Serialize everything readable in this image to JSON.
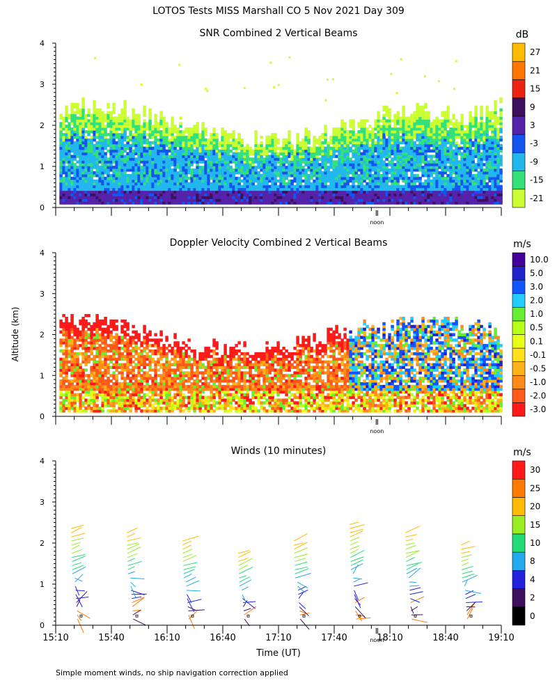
{
  "title": "LOTOS Tests MISS Marshall CO   5 Nov 2021 Day 309",
  "y_axis_label": "Altitude (km)",
  "x_axis_label": "Time (UT)",
  "noon_label": "noon",
  "footer": "Simple moment winds, no ship navigation correction applied",
  "colors": {
    "snr": [
      "#ccff33",
      "#33e07a",
      "#22b8ee",
      "#1455f0",
      "#5522aa",
      "#3d0f5c",
      "#ee2211",
      "#ff7700",
      "#ffbb00"
    ],
    "doppler": [
      "#ff1a1a",
      "#ff5a1a",
      "#ff8c1a",
      "#ffb31a",
      "#ffe01a",
      "#e8ff1a",
      "#b8ff1a",
      "#66ee33",
      "#22ccff",
      "#1155ff",
      "#2222cc",
      "#440099",
      "#220033"
    ],
    "winds": [
      "#000000",
      "#3d0f5c",
      "#2222dd",
      "#22aaee",
      "#22dd77",
      "#99ee22",
      "#ffbb00",
      "#ff7a00",
      "#ff1a1a"
    ]
  },
  "chart_data": [
    {
      "type": "heatmap",
      "title": "SNR Combined 2 Vertical Beams",
      "unit": "dB",
      "xlim_minutes": [
        0,
        240
      ],
      "ylim_km": [
        0,
        4
      ],
      "yticks": [
        "0",
        "1",
        "2",
        "3",
        "4"
      ],
      "colorbar_labels": [
        "-21",
        "-15",
        "-9",
        "-3",
        "3",
        "9",
        "15",
        "21",
        "27"
      ],
      "echo_top_km": [
        2.2,
        2.5,
        2.4,
        2.2,
        2.0,
        1.9,
        1.75,
        1.6,
        1.55,
        1.7,
        1.9,
        2.1,
        2.25,
        2.35,
        2.3,
        2.2,
        2.45
      ]
    },
    {
      "type": "heatmap",
      "title": "Doppler Velocity Combined 2 Vertical Beams",
      "unit": "m/s",
      "xlim_minutes": [
        0,
        240
      ],
      "ylim_km": [
        0,
        4
      ],
      "yticks": [
        "0",
        "1",
        "2",
        "3",
        "4"
      ],
      "colorbar_labels": [
        "-3.0",
        "-2.0",
        "-1.0",
        "-0.5",
        "-0.1",
        "0.1",
        "0.5",
        "1.0",
        "2.0",
        "3.0",
        "5.0",
        "10.0"
      ],
      "echo_top_km": [
        2.3,
        2.4,
        2.2,
        2.0,
        1.85,
        1.7,
        1.65,
        1.6,
        1.7,
        1.85,
        2.0,
        2.1,
        2.2,
        2.25,
        2.2,
        2.3,
        1.9
      ]
    },
    {
      "type": "scatter",
      "title": "Winds (10 minutes)",
      "unit": "m/s",
      "xlim_minutes": [
        0,
        240
      ],
      "ylim_km": [
        0,
        4
      ],
      "yticks": [
        "0",
        "1",
        "2",
        "3",
        "4"
      ],
      "colorbar_labels": [
        "0",
        "2",
        "4",
        "8",
        "10",
        "15",
        "20",
        "25",
        "30"
      ],
      "xticks": [
        "15:10",
        "15:40",
        "16:10",
        "16:40",
        "17:10",
        "17:40",
        "18:10",
        "18:40",
        "19:10"
      ],
      "profile_times_minutes": [
        15,
        45,
        75,
        105,
        135,
        165,
        195,
        225
      ],
      "profiles": [
        {
          "time": "15:25",
          "top_km": 2.45
        },
        {
          "time": "15:55",
          "top_km": 2.35
        },
        {
          "time": "16:25",
          "top_km": 2.1
        },
        {
          "time": "16:55",
          "top_km": 1.8
        },
        {
          "time": "17:25",
          "top_km": 2.15
        },
        {
          "time": "17:55",
          "top_km": 2.5
        },
        {
          "time": "18:25",
          "top_km": 2.35
        },
        {
          "time": "18:55",
          "top_km": 2.05
        }
      ],
      "noon_minutes": 173
    }
  ]
}
